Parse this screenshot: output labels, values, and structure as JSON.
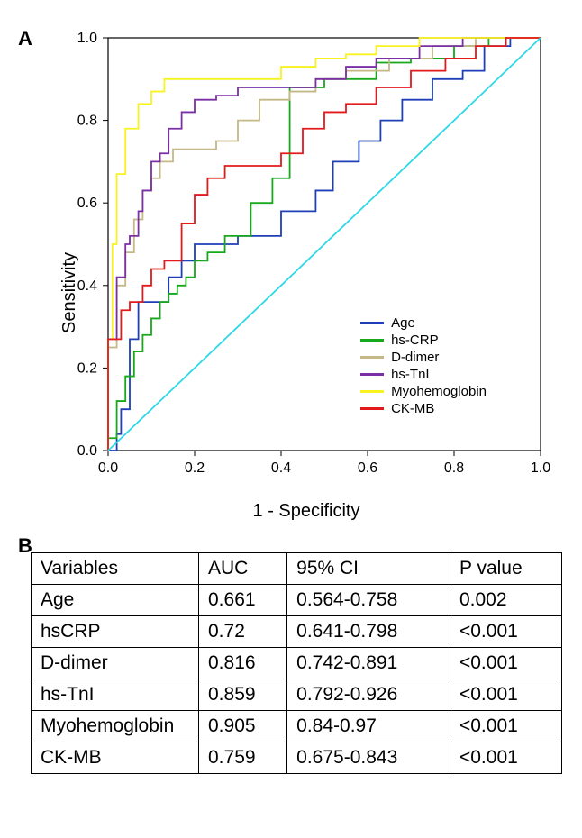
{
  "panelA": {
    "label": "A",
    "chart": {
      "type": "line",
      "xlabel": "1 - Specificity",
      "ylabel": "Sensitivity",
      "xlim": [
        0.0,
        1.0
      ],
      "ylim": [
        0.0,
        1.0
      ],
      "tick_step": 0.2,
      "ticks": [
        "0.0",
        "0.2",
        "0.4",
        "0.6",
        "0.8",
        "1.0"
      ],
      "background_color": "#ffffff",
      "axis_color": "#000000",
      "label_fontsize": 20,
      "tick_fontsize": 16,
      "series": [
        {
          "name": "Age",
          "color": "#1f3fb8",
          "points": [
            [
              0.0,
              0.0
            ],
            [
              0.02,
              0.0
            ],
            [
              0.02,
              0.04
            ],
            [
              0.03,
              0.04
            ],
            [
              0.03,
              0.1
            ],
            [
              0.05,
              0.1
            ],
            [
              0.05,
              0.27
            ],
            [
              0.07,
              0.27
            ],
            [
              0.07,
              0.36
            ],
            [
              0.1,
              0.36
            ],
            [
              0.1,
              0.36
            ],
            [
              0.14,
              0.36
            ],
            [
              0.14,
              0.42
            ],
            [
              0.17,
              0.42
            ],
            [
              0.17,
              0.46
            ],
            [
              0.2,
              0.46
            ],
            [
              0.2,
              0.5
            ],
            [
              0.23,
              0.5
            ],
            [
              0.23,
              0.5
            ],
            [
              0.3,
              0.5
            ],
            [
              0.3,
              0.52
            ],
            [
              0.35,
              0.52
            ],
            [
              0.35,
              0.52
            ],
            [
              0.4,
              0.52
            ],
            [
              0.4,
              0.58
            ],
            [
              0.45,
              0.58
            ],
            [
              0.45,
              0.58
            ],
            [
              0.48,
              0.58
            ],
            [
              0.48,
              0.63
            ],
            [
              0.52,
              0.63
            ],
            [
              0.52,
              0.7
            ],
            [
              0.58,
              0.7
            ],
            [
              0.58,
              0.75
            ],
            [
              0.63,
              0.75
            ],
            [
              0.63,
              0.8
            ],
            [
              0.68,
              0.8
            ],
            [
              0.68,
              0.85
            ],
            [
              0.75,
              0.85
            ],
            [
              0.75,
              0.9
            ],
            [
              0.82,
              0.9
            ],
            [
              0.82,
              0.92
            ],
            [
              0.87,
              0.92
            ],
            [
              0.87,
              0.98
            ],
            [
              0.93,
              0.98
            ],
            [
              0.93,
              1.0
            ],
            [
              1.0,
              1.0
            ]
          ]
        },
        {
          "name": "hs-CRP",
          "color": "#18a81c",
          "points": [
            [
              0.0,
              0.0
            ],
            [
              0.0,
              0.03
            ],
            [
              0.02,
              0.03
            ],
            [
              0.02,
              0.12
            ],
            [
              0.04,
              0.12
            ],
            [
              0.04,
              0.18
            ],
            [
              0.06,
              0.18
            ],
            [
              0.06,
              0.24
            ],
            [
              0.08,
              0.24
            ],
            [
              0.08,
              0.28
            ],
            [
              0.1,
              0.28
            ],
            [
              0.1,
              0.32
            ],
            [
              0.12,
              0.32
            ],
            [
              0.12,
              0.36
            ],
            [
              0.14,
              0.36
            ],
            [
              0.14,
              0.38
            ],
            [
              0.16,
              0.38
            ],
            [
              0.16,
              0.4
            ],
            [
              0.18,
              0.4
            ],
            [
              0.18,
              0.42
            ],
            [
              0.2,
              0.42
            ],
            [
              0.2,
              0.46
            ],
            [
              0.23,
              0.46
            ],
            [
              0.23,
              0.48
            ],
            [
              0.27,
              0.48
            ],
            [
              0.27,
              0.52
            ],
            [
              0.3,
              0.52
            ],
            [
              0.3,
              0.52
            ],
            [
              0.33,
              0.52
            ],
            [
              0.33,
              0.6
            ],
            [
              0.38,
              0.6
            ],
            [
              0.38,
              0.66
            ],
            [
              0.42,
              0.66
            ],
            [
              0.42,
              0.88
            ],
            [
              0.45,
              0.88
            ],
            [
              0.45,
              0.88
            ],
            [
              0.48,
              0.88
            ],
            [
              0.5,
              0.88
            ],
            [
              0.5,
              0.9
            ],
            [
              0.55,
              0.9
            ],
            [
              0.55,
              0.9
            ],
            [
              0.62,
              0.9
            ],
            [
              0.62,
              0.94
            ],
            [
              0.7,
              0.94
            ],
            [
              0.7,
              0.95
            ],
            [
              0.8,
              0.95
            ],
            [
              0.8,
              0.98
            ],
            [
              0.88,
              0.98
            ],
            [
              0.88,
              1.0
            ],
            [
              1.0,
              1.0
            ]
          ]
        },
        {
          "name": "D-dimer",
          "color": "#c4b886",
          "points": [
            [
              0.0,
              0.0
            ],
            [
              0.0,
              0.25
            ],
            [
              0.02,
              0.25
            ],
            [
              0.02,
              0.4
            ],
            [
              0.04,
              0.4
            ],
            [
              0.04,
              0.48
            ],
            [
              0.06,
              0.48
            ],
            [
              0.06,
              0.56
            ],
            [
              0.08,
              0.56
            ],
            [
              0.08,
              0.63
            ],
            [
              0.1,
              0.63
            ],
            [
              0.1,
              0.66
            ],
            [
              0.12,
              0.66
            ],
            [
              0.12,
              0.7
            ],
            [
              0.15,
              0.7
            ],
            [
              0.15,
              0.73
            ],
            [
              0.2,
              0.73
            ],
            [
              0.2,
              0.73
            ],
            [
              0.25,
              0.73
            ],
            [
              0.25,
              0.75
            ],
            [
              0.3,
              0.75
            ],
            [
              0.3,
              0.8
            ],
            [
              0.35,
              0.8
            ],
            [
              0.35,
              0.85
            ],
            [
              0.42,
              0.85
            ],
            [
              0.42,
              0.87
            ],
            [
              0.48,
              0.87
            ],
            [
              0.48,
              0.9
            ],
            [
              0.55,
              0.9
            ],
            [
              0.55,
              0.92
            ],
            [
              0.65,
              0.92
            ],
            [
              0.65,
              0.95
            ],
            [
              0.75,
              0.95
            ],
            [
              0.75,
              0.98
            ],
            [
              0.85,
              0.98
            ],
            [
              0.85,
              1.0
            ],
            [
              1.0,
              1.0
            ]
          ]
        },
        {
          "name": "hs-TnI",
          "color": "#7b2fa5",
          "points": [
            [
              0.0,
              0.0
            ],
            [
              0.0,
              0.27
            ],
            [
              0.02,
              0.27
            ],
            [
              0.02,
              0.42
            ],
            [
              0.04,
              0.42
            ],
            [
              0.04,
              0.5
            ],
            [
              0.05,
              0.5
            ],
            [
              0.05,
              0.52
            ],
            [
              0.07,
              0.52
            ],
            [
              0.07,
              0.58
            ],
            [
              0.08,
              0.58
            ],
            [
              0.08,
              0.63
            ],
            [
              0.1,
              0.63
            ],
            [
              0.1,
              0.7
            ],
            [
              0.12,
              0.7
            ],
            [
              0.12,
              0.72
            ],
            [
              0.14,
              0.72
            ],
            [
              0.14,
              0.78
            ],
            [
              0.17,
              0.78
            ],
            [
              0.17,
              0.82
            ],
            [
              0.2,
              0.82
            ],
            [
              0.2,
              0.85
            ],
            [
              0.25,
              0.85
            ],
            [
              0.25,
              0.86
            ],
            [
              0.3,
              0.86
            ],
            [
              0.3,
              0.88
            ],
            [
              0.4,
              0.88
            ],
            [
              0.4,
              0.88
            ],
            [
              0.48,
              0.88
            ],
            [
              0.48,
              0.9
            ],
            [
              0.55,
              0.9
            ],
            [
              0.55,
              0.93
            ],
            [
              0.62,
              0.93
            ],
            [
              0.62,
              0.95
            ],
            [
              0.72,
              0.95
            ],
            [
              0.72,
              0.98
            ],
            [
              0.82,
              0.98
            ],
            [
              0.82,
              1.0
            ],
            [
              1.0,
              1.0
            ]
          ]
        },
        {
          "name": "Myohemoglobin",
          "color": "#f7f321",
          "points": [
            [
              0.0,
              0.0
            ],
            [
              0.0,
              0.27
            ],
            [
              0.01,
              0.27
            ],
            [
              0.01,
              0.5
            ],
            [
              0.02,
              0.5
            ],
            [
              0.02,
              0.67
            ],
            [
              0.04,
              0.67
            ],
            [
              0.04,
              0.78
            ],
            [
              0.07,
              0.78
            ],
            [
              0.07,
              0.84
            ],
            [
              0.1,
              0.84
            ],
            [
              0.1,
              0.87
            ],
            [
              0.13,
              0.87
            ],
            [
              0.13,
              0.9
            ],
            [
              0.18,
              0.9
            ],
            [
              0.18,
              0.9
            ],
            [
              0.25,
              0.9
            ],
            [
              0.25,
              0.9
            ],
            [
              0.32,
              0.9
            ],
            [
              0.32,
              0.9
            ],
            [
              0.4,
              0.9
            ],
            [
              0.4,
              0.93
            ],
            [
              0.48,
              0.93
            ],
            [
              0.48,
              0.95
            ],
            [
              0.55,
              0.95
            ],
            [
              0.55,
              0.96
            ],
            [
              0.62,
              0.96
            ],
            [
              0.62,
              0.98
            ],
            [
              0.72,
              0.98
            ],
            [
              0.72,
              1.0
            ],
            [
              1.0,
              1.0
            ]
          ]
        },
        {
          "name": "CK-MB",
          "color": "#e31a1c",
          "points": [
            [
              0.0,
              0.0
            ],
            [
              0.0,
              0.27
            ],
            [
              0.03,
              0.27
            ],
            [
              0.03,
              0.34
            ],
            [
              0.05,
              0.34
            ],
            [
              0.05,
              0.36
            ],
            [
              0.08,
              0.36
            ],
            [
              0.08,
              0.4
            ],
            [
              0.1,
              0.4
            ],
            [
              0.1,
              0.44
            ],
            [
              0.13,
              0.44
            ],
            [
              0.13,
              0.46
            ],
            [
              0.17,
              0.46
            ],
            [
              0.17,
              0.55
            ],
            [
              0.2,
              0.55
            ],
            [
              0.2,
              0.62
            ],
            [
              0.23,
              0.62
            ],
            [
              0.23,
              0.66
            ],
            [
              0.27,
              0.66
            ],
            [
              0.27,
              0.69
            ],
            [
              0.3,
              0.69
            ],
            [
              0.3,
              0.69
            ],
            [
              0.4,
              0.69
            ],
            [
              0.4,
              0.72
            ],
            [
              0.45,
              0.72
            ],
            [
              0.45,
              0.78
            ],
            [
              0.5,
              0.78
            ],
            [
              0.5,
              0.82
            ],
            [
              0.55,
              0.82
            ],
            [
              0.55,
              0.84
            ],
            [
              0.62,
              0.84
            ],
            [
              0.62,
              0.88
            ],
            [
              0.7,
              0.88
            ],
            [
              0.7,
              0.92
            ],
            [
              0.78,
              0.92
            ],
            [
              0.78,
              0.95
            ],
            [
              0.85,
              0.95
            ],
            [
              0.85,
              0.98
            ],
            [
              0.92,
              0.98
            ],
            [
              0.92,
              1.0
            ],
            [
              1.0,
              1.0
            ]
          ]
        },
        {
          "name": "__ref",
          "color": "#2fd8e6",
          "points": [
            [
              0.0,
              0.0
            ],
            [
              1.0,
              1.0
            ]
          ]
        }
      ]
    }
  },
  "panelB": {
    "label": "B",
    "table": {
      "columns": [
        "Variables",
        "AUC",
        "95% CI",
        "P value"
      ],
      "col_widths": [
        "180px",
        "95px",
        "175px",
        "120px"
      ],
      "rows": [
        [
          "Age",
          "0.661",
          "0.564-0.758",
          "0.002"
        ],
        [
          "hsCRP",
          "0.72",
          "0.641-0.798",
          "<0.001"
        ],
        [
          "D-dimer",
          "0.816",
          "0.742-0.891",
          "<0.001"
        ],
        [
          "hs-TnI",
          "0.859",
          "0.792-0.926",
          "<0.001"
        ],
        [
          "Myohemoglobin",
          "0.905",
          "0.84-0.97",
          "<0.001"
        ],
        [
          "CK-MB",
          "0.759",
          "0.675-0.843",
          "<0.001"
        ]
      ]
    }
  }
}
